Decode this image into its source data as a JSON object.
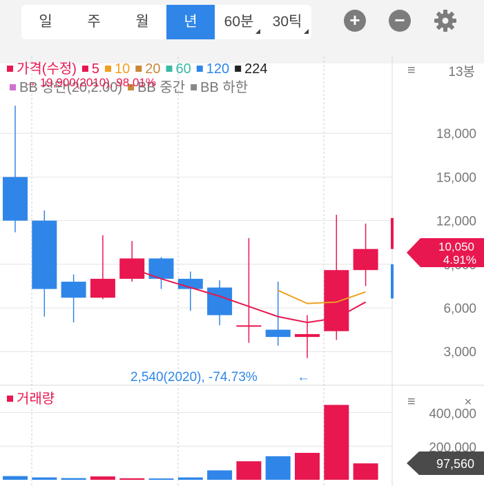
{
  "tabs": [
    {
      "label": "일",
      "active": false
    },
    {
      "label": "주",
      "active": false
    },
    {
      "label": "월",
      "active": false
    },
    {
      "label": "년",
      "active": true
    },
    {
      "label": "60분",
      "active": false
    },
    {
      "label": "30틱",
      "active": false
    }
  ],
  "toolbar": {
    "zoom_in_icon": "plus-circle-icon",
    "zoom_out_icon": "minus-circle-icon",
    "settings_icon": "gear-icon"
  },
  "price_panel": {
    "legend": [
      {
        "label": "가격(수정)",
        "color": "#e8174f"
      },
      {
        "label": "5",
        "color": "#e8174f"
      },
      {
        "label": "10",
        "color": "#f0a020"
      },
      {
        "label": "20",
        "color": "#c8873a"
      },
      {
        "label": "60",
        "color": "#3bb9a5"
      },
      {
        "label": "120",
        "color": "#2f86e8"
      },
      {
        "label": "224",
        "color": "#222222"
      }
    ],
    "legend2": [
      {
        "label": "BB 상단(20,2.00)",
        "color": "#d070d0"
      },
      {
        "label": "BB 중간",
        "color": "#c8873a"
      },
      {
        "label": "BB 하한",
        "color": "#888888"
      }
    ],
    "count_label": "13봉",
    "max_annotation": "→ 19,900(2010), 98.01%",
    "min_annotation": "2,540(2020), -74.73%",
    "min_arrow": "←",
    "current_price": "10,050",
    "current_change": "4.91%"
  },
  "volume_panel": {
    "legend": [
      {
        "label": "거래량",
        "color": "#e8174f"
      }
    ],
    "current_volume": "97,560"
  },
  "chart_data": {
    "type": "candlestick",
    "y_ticks": [
      "18,000",
      "15,000",
      "12,000",
      "9,000",
      "6,000",
      "3,000"
    ],
    "ylim": [
      1300,
      21000
    ],
    "candles": [
      {
        "open": 15000,
        "high": 19900,
        "low": 11200,
        "close": 12000,
        "color": "blue"
      },
      {
        "open": 12000,
        "high": 12700,
        "low": 5400,
        "close": 7300,
        "color": "blue"
      },
      {
        "open": 7800,
        "high": 8300,
        "low": 5000,
        "close": 6700,
        "color": "blue"
      },
      {
        "open": 6700,
        "high": 11000,
        "low": 6600,
        "close": 8000,
        "color": "red"
      },
      {
        "open": 8000,
        "high": 10600,
        "low": 7800,
        "close": 9400,
        "color": "red"
      },
      {
        "open": 9400,
        "high": 9500,
        "low": 7300,
        "close": 8000,
        "color": "blue"
      },
      {
        "open": 8000,
        "high": 8500,
        "low": 5800,
        "close": 7300,
        "color": "blue"
      },
      {
        "open": 7400,
        "high": 7900,
        "low": 4800,
        "close": 5500,
        "color": "blue"
      },
      {
        "open": 4800,
        "high": 10800,
        "low": 3600,
        "close": 4800,
        "color": "red"
      },
      {
        "open": 4500,
        "high": 7800,
        "low": 3400,
        "close": 4000,
        "color": "blue"
      },
      {
        "open": 4000,
        "high": 5500,
        "low": 2540,
        "close": 4200,
        "color": "red"
      },
      {
        "open": 4400,
        "high": 12400,
        "low": 3800,
        "close": 8600,
        "color": "red"
      },
      {
        "open": 8600,
        "high": 11800,
        "low": 7500,
        "close": 10050,
        "color": "red"
      }
    ],
    "ma5": [
      null,
      null,
      null,
      null,
      8700,
      8000,
      7400,
      6800,
      6100,
      5400,
      5000,
      5300,
      6400
    ],
    "ma10": [
      null,
      null,
      null,
      null,
      null,
      null,
      null,
      null,
      null,
      7200,
      6300,
      6400,
      7100
    ],
    "volume_ticks": [
      "400,000",
      "200,000"
    ],
    "volume_ylim": [
      0,
      480000
    ],
    "volumes": [
      {
        "value": 22000,
        "color": "blue"
      },
      {
        "value": 14000,
        "color": "blue"
      },
      {
        "value": 10000,
        "color": "blue"
      },
      {
        "value": 20000,
        "color": "red"
      },
      {
        "value": 9000,
        "color": "red"
      },
      {
        "value": 8000,
        "color": "blue"
      },
      {
        "value": 14000,
        "color": "blue"
      },
      {
        "value": 56000,
        "color": "blue"
      },
      {
        "value": 110000,
        "color": "red"
      },
      {
        "value": 140000,
        "color": "blue"
      },
      {
        "value": 160000,
        "color": "red"
      },
      {
        "value": 445000,
        "color": "red"
      },
      {
        "value": 97560,
        "color": "red"
      }
    ]
  }
}
